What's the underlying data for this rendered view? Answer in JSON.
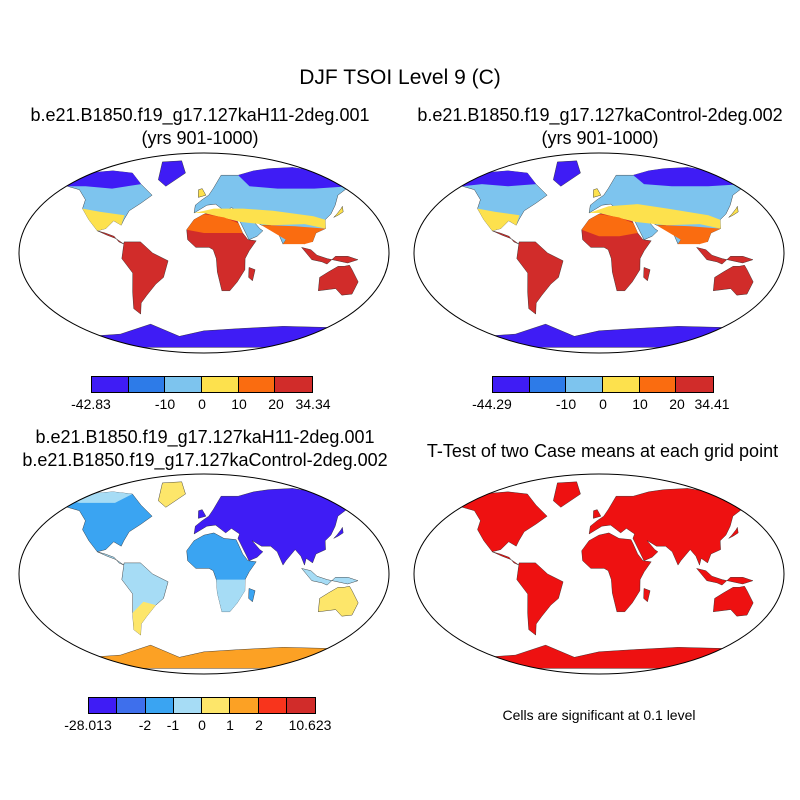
{
  "title": "DJF TSOI Level 9 (C)",
  "panels": {
    "top_left": {
      "title_line1": "b.e21.B1850.f19_g17.127kaH11-2deg.001",
      "title_line2": "(yrs 901-1000)",
      "colorbar_labels": [
        "-42.83",
        "-10",
        "0",
        "10",
        "20",
        "34.34"
      ],
      "colorbar_colors": [
        "#3f1cf5",
        "#2d7be8",
        "#7dc4ee",
        "#fde14d",
        "#fa6c10",
        "#d12c2a"
      ]
    },
    "top_right": {
      "title_line1": "b.e21.B1850.f19_g17.127kaControl-2deg.002",
      "title_line2": "(yrs 901-1000)",
      "colorbar_labels": [
        "-44.29",
        "-10",
        "0",
        "10",
        "20",
        "34.41"
      ],
      "colorbar_colors": [
        "#3f1cf5",
        "#2d7be8",
        "#7dc4ee",
        "#fde14d",
        "#fa6c10",
        "#d12c2a"
      ]
    },
    "bottom_left": {
      "title_line1": "b.e21.B1850.f19_g17.127kaH11-2deg.001",
      "title_line2": "b.e21.B1850.f19_g17.127kaControl-2deg.002",
      "colorbar_labels": [
        "-28.013",
        "-2",
        "-1",
        "0",
        "1",
        "2",
        "10.623"
      ],
      "colorbar_colors": [
        "#3f1cf5",
        "#3e6fec",
        "#3aa4f2",
        "#a6dcf5",
        "#fde66a",
        "#fca124",
        "#f8341c",
        "#d12c2a"
      ]
    },
    "bottom_right": {
      "title_line1": "T-Test of two Case means at each grid point",
      "note": "Cells are significant at 0.1 level",
      "color": "#ee1111"
    }
  },
  "land_colors": {
    "top_left": [
      "#3f1cf5",
      "#2d7be8",
      "#7dc4ee",
      "#fde14d",
      "#fa6c10",
      "#d12c2a"
    ],
    "top_right": [
      "#3f1cf5",
      "#2d7be8",
      "#7dc4ee",
      "#fde14d",
      "#fa6c10",
      "#d12c2a"
    ],
    "bottom_left": [
      "#3f1cf5",
      "#3aa4f2",
      "#a6dcf5",
      "#fde66a",
      "#fca124"
    ],
    "bottom_right": [
      "#ee1111"
    ]
  }
}
